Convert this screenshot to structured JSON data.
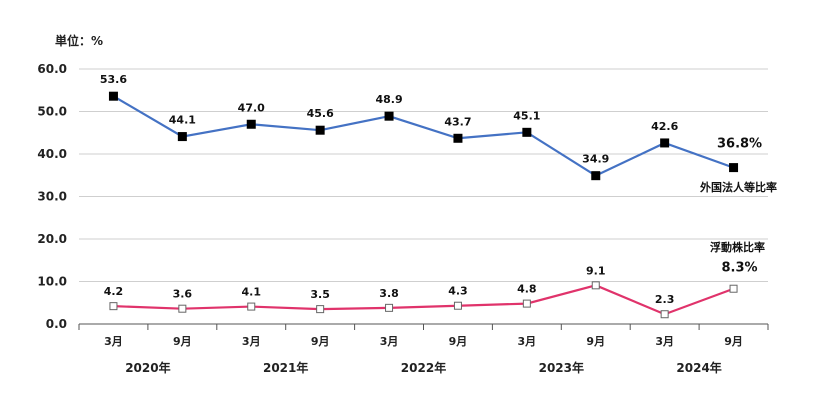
{
  "unit_label": "単位：%",
  "chart_data": {
    "type": "line",
    "categories": [
      "3月",
      "9月",
      "3月",
      "9月",
      "3月",
      "9月",
      "3月",
      "9月",
      "3月",
      "9月"
    ],
    "year_labels": [
      "2020年",
      "2021年",
      "2022年",
      "2023年",
      "2024年"
    ],
    "ylim": [
      0,
      60
    ],
    "yticks": [
      "0.0",
      "10.0",
      "20.0",
      "30.0",
      "40.0",
      "50.0",
      "60.0"
    ],
    "grid": true,
    "series": [
      {
        "name": "外国法人等比率",
        "color": "#4472c4",
        "marker": "filled-square",
        "values": [
          53.6,
          44.1,
          47.0,
          45.6,
          48.9,
          43.7,
          45.1,
          34.9,
          42.6,
          36.8
        ],
        "labels": [
          "53.6",
          "44.1",
          "47.0",
          "45.6",
          "48.9",
          "43.7",
          "45.1",
          "34.9",
          "42.6",
          "36.8%"
        ]
      },
      {
        "name": "浮動株比率",
        "color": "#e0336b",
        "marker": "open-square",
        "values": [
          4.2,
          3.6,
          4.1,
          3.5,
          3.8,
          4.3,
          4.8,
          9.1,
          2.3,
          8.3
        ],
        "labels": [
          "4.2",
          "3.6",
          "4.1",
          "3.5",
          "3.8",
          "4.3",
          "4.8",
          "9.1",
          "2.3",
          "8.3%"
        ]
      }
    ]
  }
}
